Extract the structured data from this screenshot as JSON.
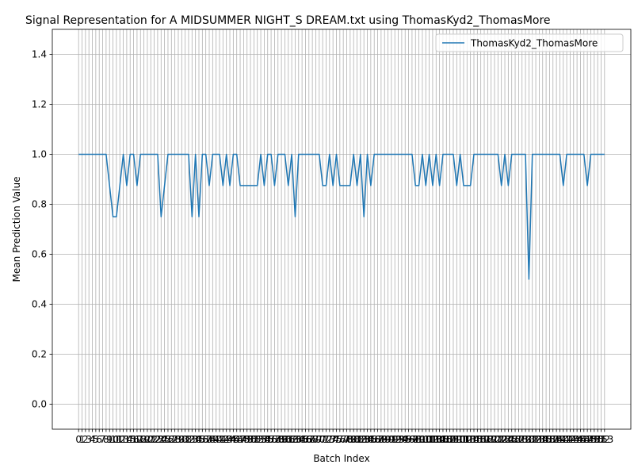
{
  "chart_data": {
    "type": "line",
    "title": "Signal Representation for A MIDSUMMER NIGHT_S DREAM.txt using ThomasKyd2_ThomasMore",
    "xlabel": "Batch Index",
    "ylabel": "Mean Prediction Value",
    "x": [
      0,
      1,
      2,
      3,
      4,
      5,
      6,
      7,
      8,
      9,
      10,
      11,
      12,
      13,
      14,
      15,
      16,
      17,
      18,
      19,
      20,
      21,
      22,
      23,
      24,
      25,
      26,
      27,
      28,
      29,
      30,
      31,
      32,
      33,
      34,
      35,
      36,
      37,
      38,
      39,
      40,
      41,
      42,
      43,
      44,
      45,
      46,
      47,
      48,
      49,
      50,
      51,
      52,
      53,
      54,
      55,
      56,
      57,
      58,
      59,
      60,
      61,
      62,
      63,
      64,
      65,
      66,
      67,
      68,
      69,
      70,
      71,
      72,
      73,
      74,
      75,
      76,
      77,
      78,
      79,
      80,
      81,
      82,
      83,
      84,
      85,
      86,
      87,
      88,
      89,
      90,
      91,
      92,
      93,
      94,
      95,
      96,
      97,
      98,
      99,
      100,
      101,
      102,
      103,
      104,
      105,
      106,
      107,
      108,
      109,
      110,
      111,
      112,
      113,
      114,
      115,
      116,
      117,
      118,
      119,
      120,
      121,
      122,
      123,
      124,
      125,
      126,
      127,
      128,
      129,
      130,
      131,
      132,
      133,
      134,
      135,
      136,
      137,
      138,
      139,
      140,
      141,
      142,
      143,
      144,
      145,
      146,
      147,
      148,
      149,
      150,
      151,
      152,
      153
    ],
    "series": [
      {
        "name": "ThomasKyd2_ThomasMore",
        "color": "#1f77b4",
        "values": [
          1,
          1,
          1,
          1,
          1,
          1,
          1,
          1,
          1,
          0.875,
          0.75,
          0.75,
          0.875,
          1,
          0.875,
          1,
          1,
          0.875,
          1,
          1,
          1,
          1,
          1,
          1,
          0.75,
          0.875,
          1,
          1,
          1,
          1,
          1,
          1,
          1,
          0.75,
          1,
          0.75,
          1,
          1,
          0.875,
          1,
          1,
          1,
          0.875,
          1,
          0.875,
          1,
          1,
          0.875,
          0.875,
          0.875,
          0.875,
          0.875,
          0.875,
          1,
          0.875,
          1,
          1,
          0.875,
          1,
          1,
          1,
          0.875,
          1,
          0.75,
          1,
          1,
          1,
          1,
          1,
          1,
          1,
          0.875,
          0.875,
          1,
          0.875,
          1,
          0.875,
          0.875,
          0.875,
          0.875,
          1,
          0.875,
          1,
          0.75,
          1,
          0.875,
          1,
          1,
          1,
          1,
          1,
          1,
          1,
          1,
          1,
          1,
          1,
          1,
          0.875,
          0.875,
          1,
          0.875,
          1,
          0.875,
          1,
          0.875,
          1,
          1,
          1,
          1,
          0.875,
          1,
          0.875,
          0.875,
          0.875,
          1,
          1,
          1,
          1,
          1,
          1,
          1,
          1,
          0.875,
          1,
          0.875,
          1,
          1,
          1,
          1,
          1,
          0.5,
          1,
          1,
          1,
          1,
          1,
          1,
          1,
          1,
          1,
          0.875,
          1,
          1,
          1,
          1,
          1,
          1,
          0.875,
          1,
          1,
          1,
          1,
          1
        ]
      }
    ],
    "xlim": [
      -7.65,
      160.65
    ],
    "xticks": [
      0,
      1,
      2,
      3,
      4,
      5,
      6,
      7,
      8,
      9,
      10,
      11,
      12,
      13,
      14,
      15,
      16,
      17,
      18,
      19,
      20,
      21,
      22,
      23,
      24,
      25,
      26,
      27,
      28,
      29,
      30,
      31,
      32,
      33,
      34,
      35,
      36,
      37,
      38,
      39,
      40,
      41,
      42,
      43,
      44,
      45,
      46,
      47,
      48,
      49,
      50,
      51,
      52,
      53,
      54,
      55,
      56,
      57,
      58,
      59,
      60,
      61,
      62,
      63,
      64,
      65,
      66,
      67,
      68,
      69,
      70,
      71,
      72,
      73,
      74,
      75,
      76,
      77,
      78,
      79,
      80,
      81,
      82,
      83,
      84,
      85,
      86,
      87,
      88,
      89,
      90,
      91,
      92,
      93,
      94,
      95,
      96,
      97,
      98,
      99,
      100,
      101,
      102,
      103,
      104,
      105,
      106,
      107,
      108,
      109,
      110,
      111,
      112,
      113,
      114,
      115,
      116,
      117,
      118,
      119,
      120,
      121,
      122,
      123,
      124,
      125,
      126,
      127,
      128,
      129,
      130,
      131,
      132,
      133,
      134,
      135,
      136,
      137,
      138,
      139,
      140,
      141,
      142,
      143,
      144,
      145,
      146,
      147,
      148,
      149,
      150,
      151,
      152,
      153
    ],
    "ylim": [
      -0.1,
      1.5
    ],
    "yticks": [
      {
        "value": 0,
        "label": "0.0"
      },
      {
        "value": 0.2,
        "label": "0.2"
      },
      {
        "value": 0.4,
        "label": "0.4"
      },
      {
        "value": 0.6,
        "label": "0.6"
      },
      {
        "value": 0.8,
        "label": "0.8"
      },
      {
        "value": 1,
        "label": "1.0"
      },
      {
        "value": 1.2,
        "label": "1.2"
      },
      {
        "value": 1.4,
        "label": "1.4"
      }
    ],
    "grid": true,
    "legend": "upper right"
  }
}
